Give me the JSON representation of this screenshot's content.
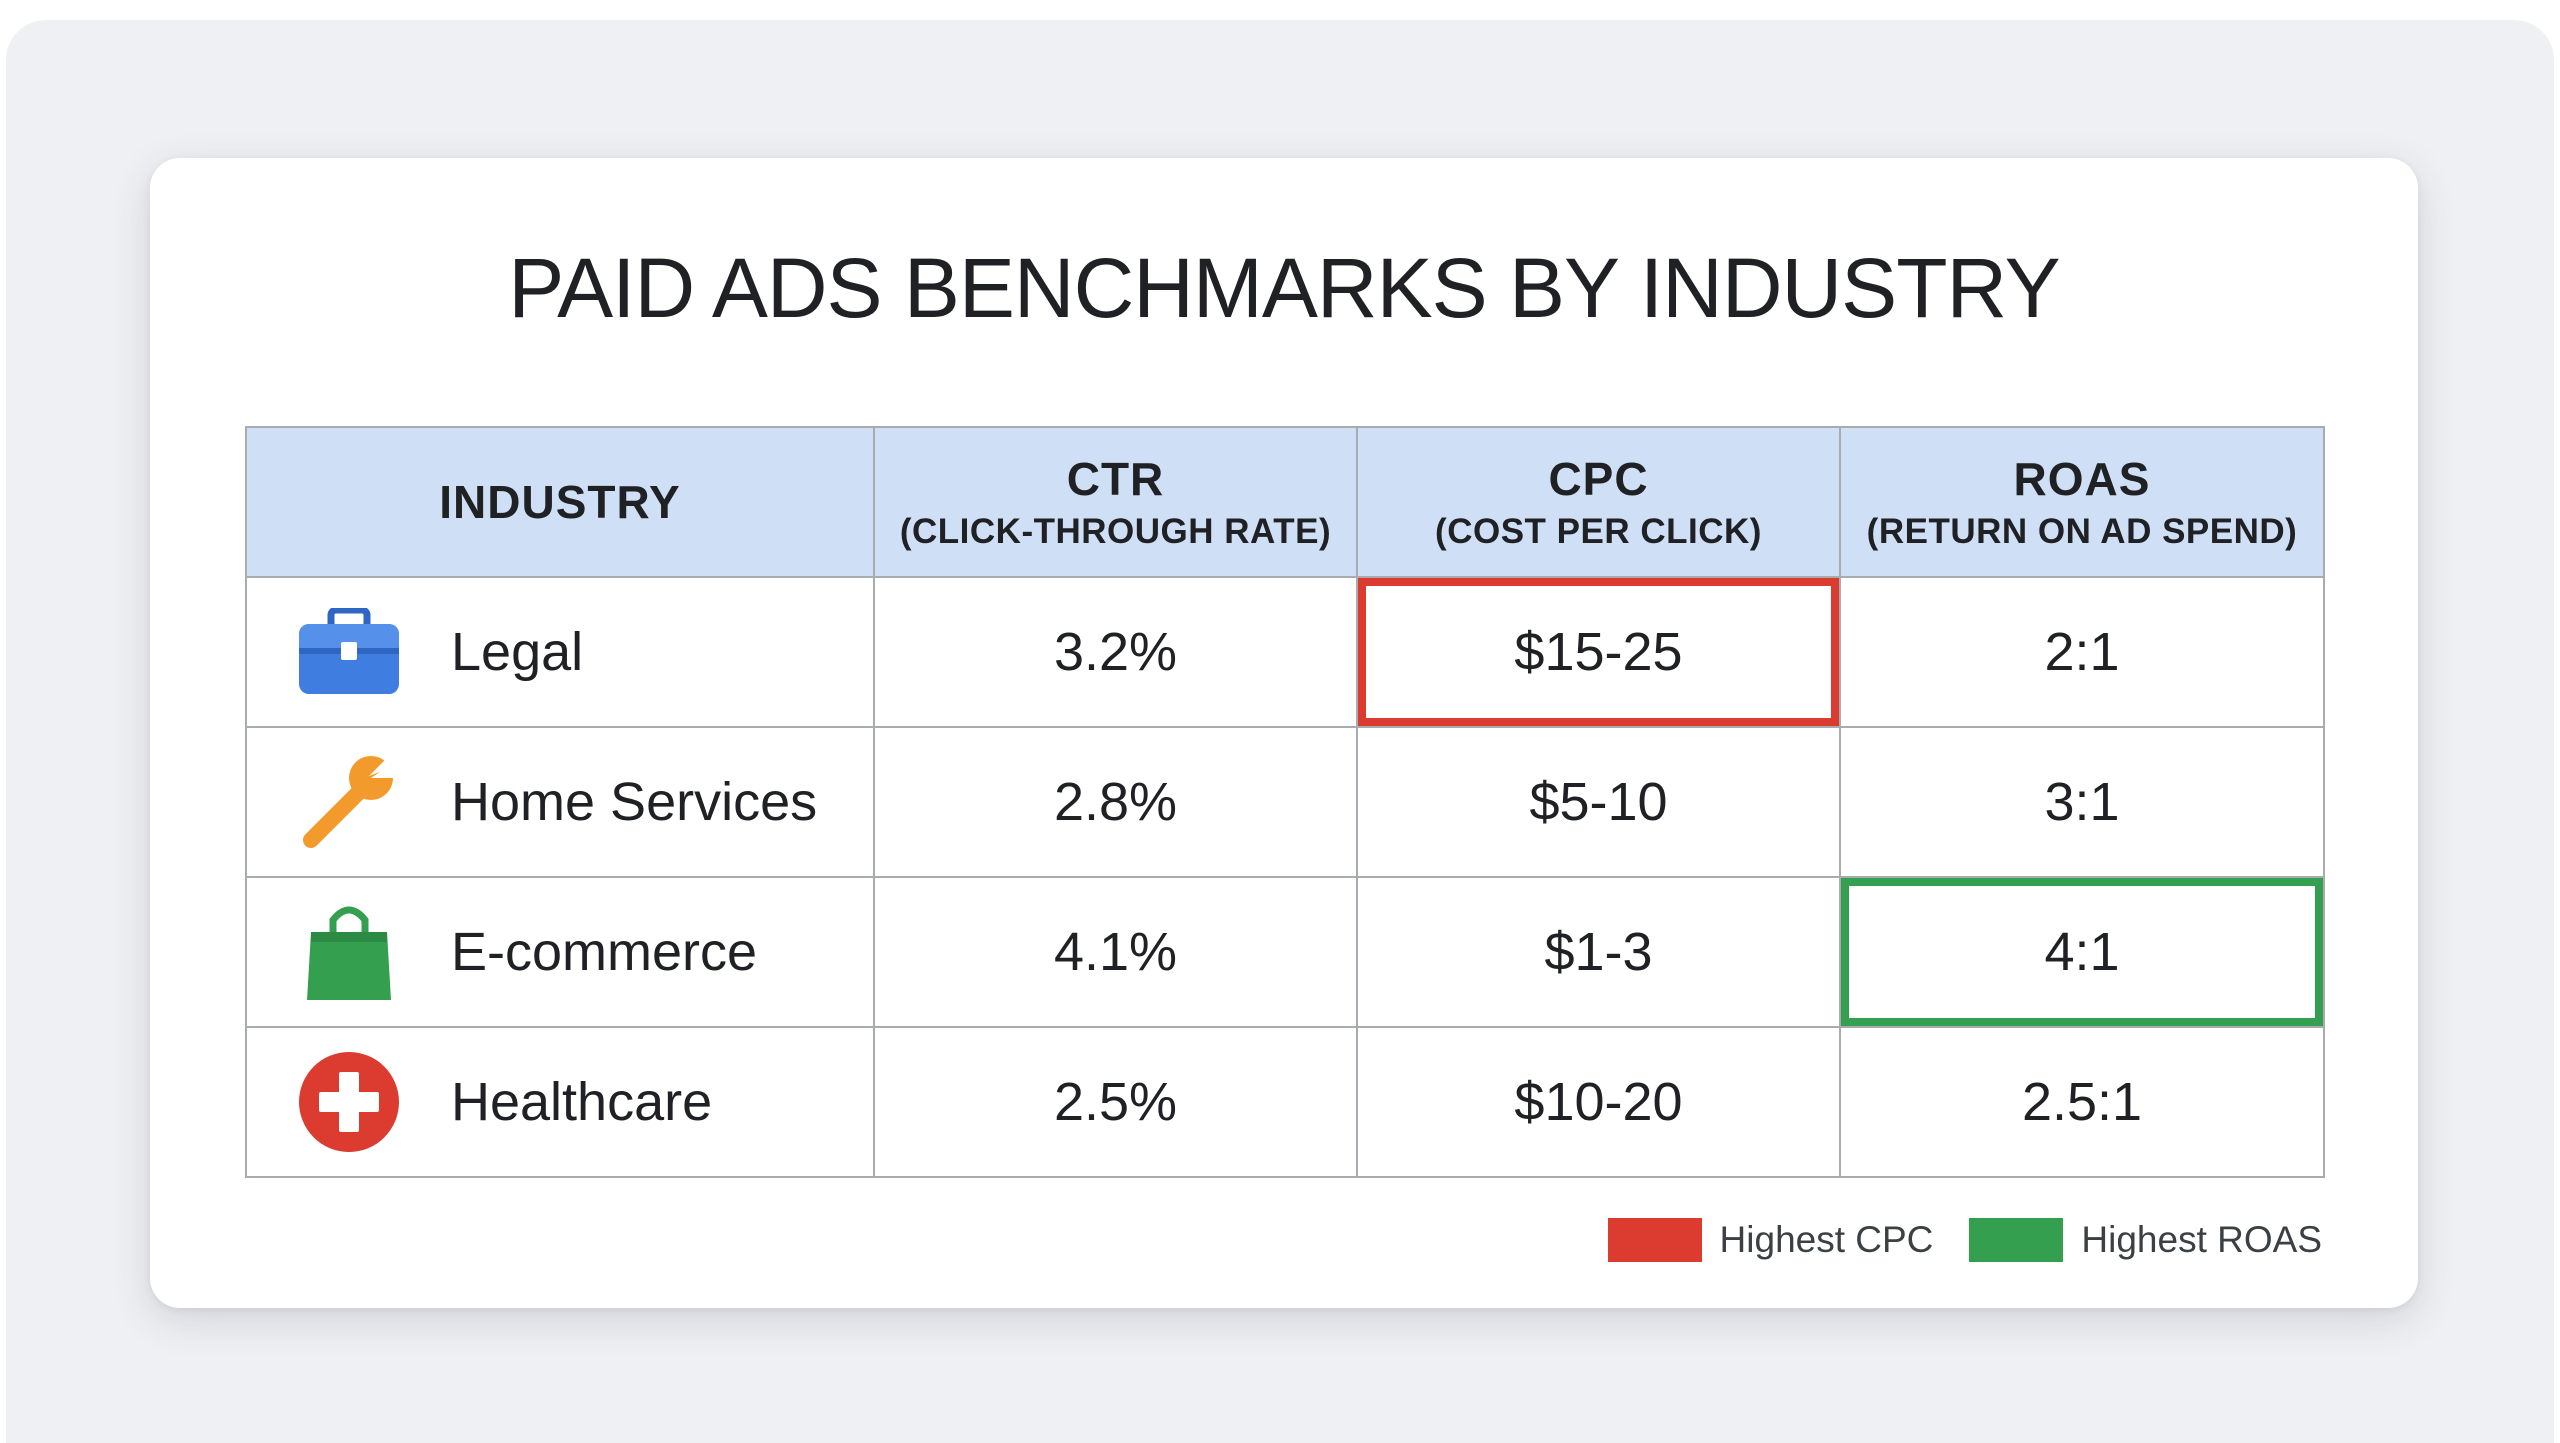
{
  "chart_data": {
    "type": "table",
    "title": "PAID ADS BENCHMARKS BY INDUSTRY",
    "columns": [
      {
        "label": "INDUSTRY",
        "sublabel": ""
      },
      {
        "label": "CTR",
        "sublabel": "(CLICK-THROUGH RATE)"
      },
      {
        "label": "CPC",
        "sublabel": "(COST PER CLICK)"
      },
      {
        "label": "ROAS",
        "sublabel": "(RETURN ON AD SPEND)"
      }
    ],
    "rows": [
      {
        "industry": "Legal",
        "icon": "briefcase-icon",
        "ctr": "3.2%",
        "cpc": "$15-25",
        "roas": "2:1"
      },
      {
        "industry": "Home Services",
        "icon": "wrench-icon",
        "ctr": "2.8%",
        "cpc": "$5-10",
        "roas": "3:1"
      },
      {
        "industry": "E-commerce",
        "icon": "shopping-bag-icon",
        "ctr": "4.1%",
        "cpc": "$1-3",
        "roas": "4:1"
      },
      {
        "industry": "Healthcare",
        "icon": "medical-cross-icon",
        "ctr": "2.5%",
        "cpc": "$10-20",
        "roas": "2.5:1"
      }
    ],
    "highlights": {
      "highest_cpc": {
        "row": 0,
        "column": "cpc",
        "color": "#dc3b2f"
      },
      "highest_roas": {
        "row": 2,
        "column": "roas",
        "color": "#34a04f"
      }
    },
    "legend": [
      {
        "label": "Highest CPC",
        "color": "#dc3b2f"
      },
      {
        "label": "Highest ROAS",
        "color": "#34a04f"
      }
    ]
  },
  "colors": {
    "header_bg": "#cfdff6",
    "grid": "#a8abb0",
    "icon_blue": "#3f7de0",
    "icon_orange": "#f39a2c",
    "icon_green": "#34a04f",
    "icon_red": "#dc3b2f"
  }
}
